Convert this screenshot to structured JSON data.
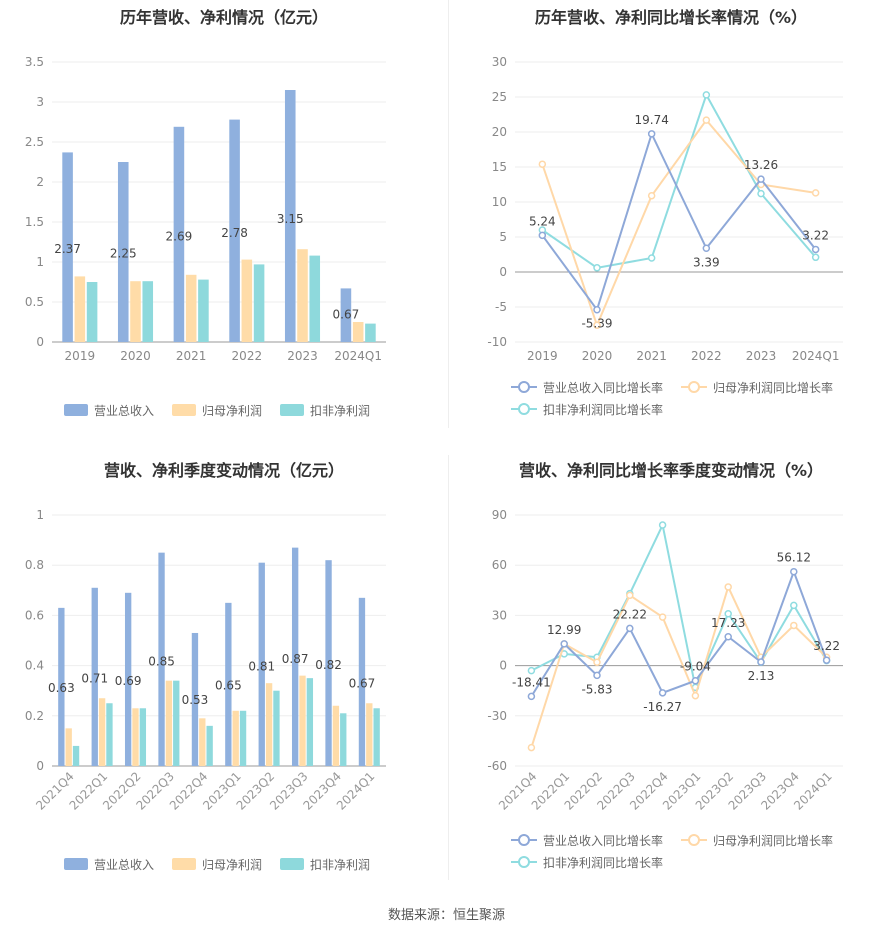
{
  "source": "数据来源：恒生聚源",
  "colors": {
    "revenue": "#8fb0de",
    "net": "#ffdca8",
    "deducted": "#8ed9dc",
    "revenue_line": "#8ea8d8",
    "net_line": "#ffd8a8",
    "deducted_line": "#8fdce0",
    "axis": "#999999",
    "grid": "#eeeeee"
  },
  "panels": [
    {
      "title": "历年营收、净利情况（亿元）",
      "legend": [
        "营业总收入",
        "归母净利润",
        "扣非净利润"
      ]
    },
    {
      "title": "历年营收、净利同比增长率情况（%）",
      "legend": [
        "营业总收入同比增长率",
        "归母净利润同比增长率",
        "扣非净利润同比增长率"
      ]
    },
    {
      "title": "营收、净利季度变动情况（亿元）",
      "legend": [
        "营业总收入",
        "归母净利润",
        "扣非净利润"
      ]
    },
    {
      "title": "营收、净利同比增长率季度变动情况（%）",
      "legend": [
        "营业总收入同比增长率",
        "归母净利润同比增长率",
        "扣非净利润同比增长率"
      ]
    }
  ],
  "chart_data": [
    {
      "type": "bar",
      "title": "历年营收、净利情况（亿元）",
      "categories": [
        "2019",
        "2020",
        "2021",
        "2022",
        "2023",
        "2024Q1"
      ],
      "ylim": [
        0,
        3.5
      ],
      "yticks": [
        "0",
        "0.5",
        "1",
        "1.5",
        "2",
        "2.5",
        "3",
        "3.5"
      ],
      "series": [
        {
          "name": "营业总收入",
          "values": [
            2.37,
            2.25,
            2.69,
            2.78,
            3.15,
            0.67
          ],
          "labels": [
            "2.37",
            "2.25",
            "2.69",
            "2.78",
            "3.15",
            "0.67"
          ]
        },
        {
          "name": "归母净利润",
          "values": [
            0.82,
            0.76,
            0.84,
            1.03,
            1.16,
            0.25
          ]
        },
        {
          "name": "扣非净利润",
          "values": [
            0.75,
            0.76,
            0.78,
            0.97,
            1.08,
            0.23
          ]
        }
      ],
      "legend": "bottom"
    },
    {
      "type": "line",
      "title": "历年营收、净利同比增长率情况（%）",
      "categories": [
        "2019",
        "2020",
        "2021",
        "2022",
        "2023",
        "2024Q1"
      ],
      "ylim": [
        -10,
        30
      ],
      "yticks": [
        "-10",
        "-5",
        "0",
        "5",
        "10",
        "15",
        "20",
        "25",
        "30"
      ],
      "series": [
        {
          "name": "营业总收入同比增长率",
          "values": [
            5.24,
            -5.39,
            19.74,
            3.39,
            13.26,
            3.22
          ],
          "labels": [
            "5.24",
            "-5.39",
            "19.74",
            "3.39",
            "13.26",
            "3.22"
          ]
        },
        {
          "name": "归母净利润同比增长率",
          "values": [
            15.4,
            -7.6,
            10.9,
            21.7,
            12.5,
            11.3
          ]
        },
        {
          "name": "扣非净利润同比增长率",
          "values": [
            6.0,
            0.6,
            2.0,
            25.3,
            11.2,
            2.1
          ]
        }
      ],
      "legend": "bottom"
    },
    {
      "type": "bar",
      "title": "营收、净利季度变动情况（亿元）",
      "categories": [
        "2021Q4",
        "2022Q1",
        "2022Q2",
        "2022Q3",
        "2022Q4",
        "2023Q1",
        "2023Q2",
        "2023Q3",
        "2023Q4",
        "2024Q1"
      ],
      "ylim": [
        0,
        1
      ],
      "yticks": [
        "0",
        "0.2",
        "0.4",
        "0.6",
        "0.8",
        "1"
      ],
      "series": [
        {
          "name": "营业总收入",
          "values": [
            0.63,
            0.71,
            0.69,
            0.85,
            0.53,
            0.65,
            0.81,
            0.87,
            0.82,
            0.67
          ],
          "labels": [
            "0.63",
            "0.71",
            "0.69",
            "0.85",
            "0.53",
            "0.65",
            "0.81",
            "0.87",
            "0.82",
            "0.67"
          ]
        },
        {
          "name": "归母净利润",
          "values": [
            0.15,
            0.27,
            0.23,
            0.34,
            0.19,
            0.22,
            0.33,
            0.36,
            0.24,
            0.25
          ]
        },
        {
          "name": "扣非净利润",
          "values": [
            0.08,
            0.25,
            0.23,
            0.34,
            0.16,
            0.22,
            0.3,
            0.35,
            0.21,
            0.23
          ]
        }
      ],
      "legend": "bottom"
    },
    {
      "type": "line",
      "title": "营收、净利同比增长率季度变动情况（%）",
      "categories": [
        "2021Q4",
        "2022Q1",
        "2022Q2",
        "2022Q3",
        "2022Q4",
        "2023Q1",
        "2023Q2",
        "2023Q3",
        "2023Q4",
        "2024Q1"
      ],
      "ylim": [
        -60,
        90
      ],
      "yticks": [
        "-60",
        "-30",
        "0",
        "30",
        "60",
        "90"
      ],
      "series": [
        {
          "name": "营业总收入同比增长率",
          "values": [
            -18.41,
            12.99,
            -5.83,
            22.22,
            -16.27,
            -9.04,
            17.23,
            2.13,
            56.12,
            3.22
          ],
          "labels": [
            "-18.41",
            "12.99",
            "-5.83",
            "22.22",
            "-16.27",
            "-9.04",
            "17.23",
            "2.13",
            "56.12",
            "3.22"
          ]
        },
        {
          "name": "归母净利润同比增长率",
          "values": [
            -49,
            13,
            2,
            42,
            29,
            -18,
            47,
            5,
            24,
            5
          ]
        },
        {
          "name": "扣非净利润同比增长率",
          "values": [
            -3,
            7,
            5,
            43,
            84,
            -13,
            31,
            2,
            36,
            3
          ]
        }
      ],
      "legend": "bottom"
    }
  ]
}
